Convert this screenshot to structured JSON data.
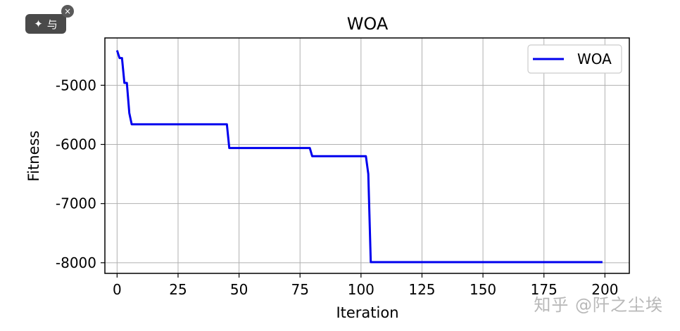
{
  "overlay": {
    "sparkle_icon": "sparkle-icon",
    "translate_icon": "translate-icon",
    "translate_label": "与",
    "close_label": "×"
  },
  "watermark": {
    "text": "知乎 @阡之尘埃"
  },
  "chart_data": {
    "type": "line",
    "title": "WOA",
    "xlabel": "Iteration",
    "ylabel": "Fitness",
    "xlim": [
      -5,
      210
    ],
    "ylim": [
      -8180,
      -4200
    ],
    "xticks": [
      0,
      25,
      50,
      75,
      100,
      125,
      150,
      175,
      200
    ],
    "yticks": [
      -8000,
      -7000,
      -6000,
      -5000
    ],
    "grid": true,
    "legend": {
      "position": "top-right",
      "entries": [
        "WOA"
      ]
    },
    "series": [
      {
        "name": "WOA",
        "color": "#0000ee",
        "x": [
          0,
          1,
          2,
          3,
          4,
          5,
          6,
          45,
          46,
          79,
          80,
          102,
          103,
          104,
          199
        ],
        "y": [
          -4410,
          -4540,
          -4540,
          -4960,
          -4960,
          -5470,
          -5660,
          -5660,
          -6060,
          -6060,
          -6200,
          -6200,
          -6500,
          -7990,
          -7990
        ]
      }
    ]
  }
}
